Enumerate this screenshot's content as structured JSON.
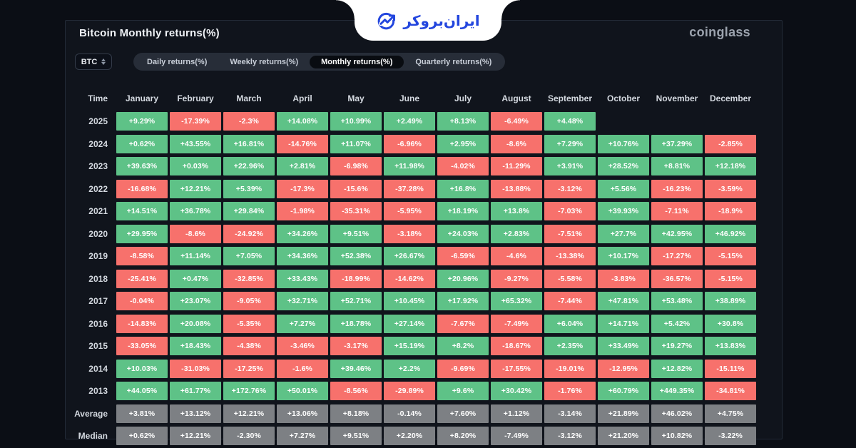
{
  "page_title": "Bitcoin Monthly returns(%)",
  "brand": "coinglass",
  "logo": {
    "text": "ایران‌بروکر"
  },
  "controls": {
    "symbol": "BTC",
    "tabs": [
      {
        "label": "Daily returns(%)",
        "active": false
      },
      {
        "label": "Weekly returns(%)",
        "active": false
      },
      {
        "label": "Monthly returns(%)",
        "active": true
      },
      {
        "label": "Quarterly returns(%)",
        "active": false
      }
    ]
  },
  "colors": {
    "green": "#5EC287",
    "red": "#F7716C",
    "stat_gray": "#7D8084"
  },
  "chart_data": {
    "type": "heatmap",
    "title": "Bitcoin Monthly returns(%)",
    "columns": [
      "Time",
      "January",
      "February",
      "March",
      "April",
      "May",
      "June",
      "July",
      "August",
      "September",
      "October",
      "November",
      "December"
    ],
    "rows": [
      {
        "label": "2025",
        "type": "year",
        "cells": [
          "+9.29%",
          "-17.39%",
          "-2.3%",
          "+14.08%",
          "+10.99%",
          "+2.49%",
          "+8.13%",
          "-6.49%",
          "+4.48%",
          "",
          "",
          ""
        ]
      },
      {
        "label": "2024",
        "type": "year",
        "cells": [
          "+0.62%",
          "+43.55%",
          "+16.81%",
          "-14.76%",
          "+11.07%",
          "-6.96%",
          "+2.95%",
          "-8.6%",
          "+7.29%",
          "+10.76%",
          "+37.29%",
          "-2.85%"
        ]
      },
      {
        "label": "2023",
        "type": "year",
        "cells": [
          "+39.63%",
          "+0.03%",
          "+22.96%",
          "+2.81%",
          "-6.98%",
          "+11.98%",
          "-4.02%",
          "-11.29%",
          "+3.91%",
          "+28.52%",
          "+8.81%",
          "+12.18%"
        ]
      },
      {
        "label": "2022",
        "type": "year",
        "cells": [
          "-16.68%",
          "+12.21%",
          "+5.39%",
          "-17.3%",
          "-15.6%",
          "-37.28%",
          "+16.8%",
          "-13.88%",
          "-3.12%",
          "+5.56%",
          "-16.23%",
          "-3.59%"
        ]
      },
      {
        "label": "2021",
        "type": "year",
        "cells": [
          "+14.51%",
          "+36.78%",
          "+29.84%",
          "-1.98%",
          "-35.31%",
          "-5.95%",
          "+18.19%",
          "+13.8%",
          "-7.03%",
          "+39.93%",
          "-7.11%",
          "-18.9%"
        ]
      },
      {
        "label": "2020",
        "type": "year",
        "cells": [
          "+29.95%",
          "-8.6%",
          "-24.92%",
          "+34.26%",
          "+9.51%",
          "-3.18%",
          "+24.03%",
          "+2.83%",
          "-7.51%",
          "+27.7%",
          "+42.95%",
          "+46.92%"
        ]
      },
      {
        "label": "2019",
        "type": "year",
        "cells": [
          "-8.58%",
          "+11.14%",
          "+7.05%",
          "+34.36%",
          "+52.38%",
          "+26.67%",
          "-6.59%",
          "-4.6%",
          "-13.38%",
          "+10.17%",
          "-17.27%",
          "-5.15%"
        ]
      },
      {
        "label": "2018",
        "type": "year",
        "cells": [
          "-25.41%",
          "+0.47%",
          "-32.85%",
          "+33.43%",
          "-18.99%",
          "-14.62%",
          "+20.96%",
          "-9.27%",
          "-5.58%",
          "-3.83%",
          "-36.57%",
          "-5.15%"
        ]
      },
      {
        "label": "2017",
        "type": "year",
        "cells": [
          "-0.04%",
          "+23.07%",
          "-9.05%",
          "+32.71%",
          "+52.71%",
          "+10.45%",
          "+17.92%",
          "+65.32%",
          "-7.44%",
          "+47.81%",
          "+53.48%",
          "+38.89%"
        ]
      },
      {
        "label": "2016",
        "type": "year",
        "cells": [
          "-14.83%",
          "+20.08%",
          "-5.35%",
          "+7.27%",
          "+18.78%",
          "+27.14%",
          "-7.67%",
          "-7.49%",
          "+6.04%",
          "+14.71%",
          "+5.42%",
          "+30.8%"
        ]
      },
      {
        "label": "2015",
        "type": "year",
        "cells": [
          "-33.05%",
          "+18.43%",
          "-4.38%",
          "-3.46%",
          "-3.17%",
          "+15.19%",
          "+8.2%",
          "-18.67%",
          "+2.35%",
          "+33.49%",
          "+19.27%",
          "+13.83%"
        ]
      },
      {
        "label": "2014",
        "type": "year",
        "cells": [
          "+10.03%",
          "-31.03%",
          "-17.25%",
          "-1.6%",
          "+39.46%",
          "+2.2%",
          "-9.69%",
          "-17.55%",
          "-19.01%",
          "-12.95%",
          "+12.82%",
          "-15.11%"
        ]
      },
      {
        "label": "2013",
        "type": "year",
        "cells": [
          "+44.05%",
          "+61.77%",
          "+172.76%",
          "+50.01%",
          "-8.56%",
          "-29.89%",
          "+9.6%",
          "+30.42%",
          "-1.76%",
          "+60.79%",
          "+449.35%",
          "-34.81%"
        ]
      },
      {
        "label": "Average",
        "type": "stat",
        "cells": [
          "+3.81%",
          "+13.12%",
          "+12.21%",
          "+13.06%",
          "+8.18%",
          "-0.14%",
          "+7.60%",
          "+1.12%",
          "-3.14%",
          "+21.89%",
          "+46.02%",
          "+4.75%"
        ]
      },
      {
        "label": "Median",
        "type": "stat",
        "cells": [
          "+0.62%",
          "+12.21%",
          "-2.30%",
          "+7.27%",
          "+9.51%",
          "+2.20%",
          "+8.20%",
          "-7.49%",
          "-3.12%",
          "+21.20%",
          "+10.82%",
          "-3.22%"
        ]
      }
    ]
  }
}
